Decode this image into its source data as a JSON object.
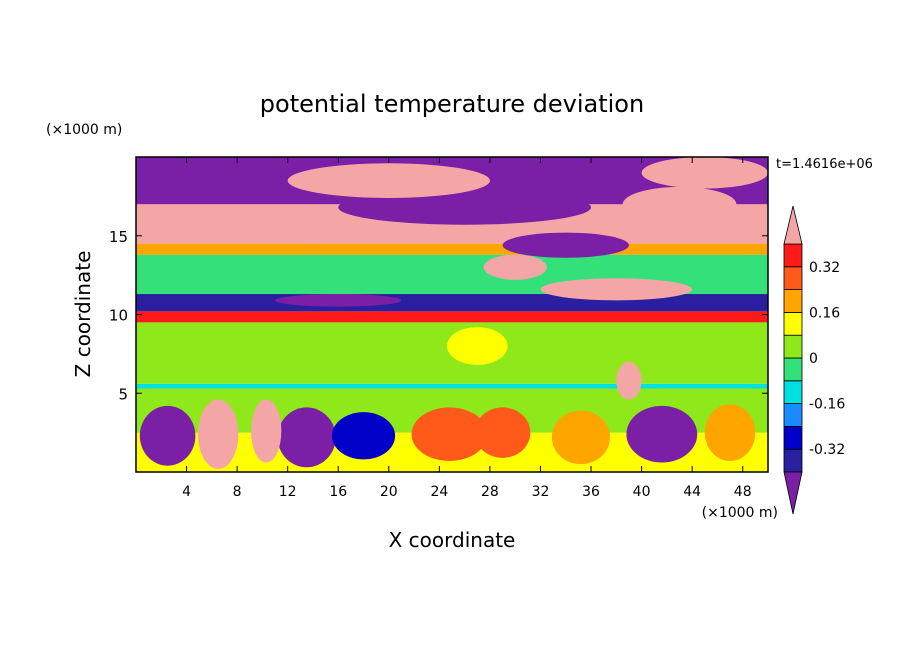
{
  "chart_data": {
    "type": "heatmap",
    "title": "potential temperature deviation",
    "xlabel": "X coordinate",
    "ylabel": "Z coordinate",
    "x_unit": "(×1000 m)",
    "y_unit": "(×1000 m)",
    "time_label": "t=1.4616e+06",
    "xlim": [
      0,
      50
    ],
    "ylim": [
      0,
      20
    ],
    "x_ticks": [
      4,
      8,
      12,
      16,
      20,
      24,
      28,
      32,
      36,
      40,
      44,
      48
    ],
    "y_ticks": [
      5,
      10,
      15
    ],
    "x_tick_labels": [
      "4",
      "8",
      "12",
      "16",
      "20",
      "24",
      "28",
      "32",
      "36",
      "40",
      "44",
      "48"
    ],
    "y_tick_labels": [
      "5",
      "10",
      "15"
    ],
    "colorbar": {
      "levels": [
        -0.4,
        -0.32,
        -0.24,
        -0.16,
        -0.08,
        0,
        0.08,
        0.16,
        0.24,
        0.32,
        0.4
      ],
      "tick_values": [
        -0.32,
        -0.16,
        0,
        0.16,
        0.32
      ],
      "tick_labels": [
        "-0.32",
        "-0.16",
        "0",
        "0.16",
        "0.32"
      ],
      "colors": [
        "#7a1fa6",
        "#2a1f9e",
        "#0000c8",
        "#1a8cff",
        "#00e0e0",
        "#33e07a",
        "#8fe81a",
        "#ffff00",
        "#ffa500",
        "#ff5a1a",
        "#ff1a1a",
        "#f4a6a6"
      ]
    },
    "bands": [
      {
        "z0": 0,
        "z1": 2.5,
        "value": 0.1
      },
      {
        "z0": 2.5,
        "z1": 5.3,
        "value": 0.0
      },
      {
        "z0": 5.3,
        "z1": 5.6,
        "value": -0.12
      },
      {
        "z0": 5.6,
        "z1": 9.5,
        "value": 0.03
      },
      {
        "z0": 9.5,
        "z1": 10.2,
        "value": 0.34
      },
      {
        "z0": 10.2,
        "z1": 11.3,
        "value": -0.38
      },
      {
        "z0": 11.3,
        "z1": 13.8,
        "value": -0.05
      },
      {
        "z0": 13.8,
        "z1": 14.5,
        "value": 0.2
      },
      {
        "z0": 14.5,
        "z1": 17,
        "value": 0.45
      },
      {
        "z0": 17,
        "z1": 20,
        "value": -0.42
      }
    ],
    "blobs": [
      {
        "x": 2.5,
        "z": 2.3,
        "rx": 2.2,
        "rz": 1.9,
        "value": -0.42
      },
      {
        "x": 6.5,
        "z": 2.4,
        "rx": 1.6,
        "rz": 2.2,
        "value": 0.45
      },
      {
        "x": 13.5,
        "z": 2.2,
        "rx": 2.3,
        "rz": 1.9,
        "value": -0.42
      },
      {
        "x": 10.3,
        "z": 2.6,
        "rx": 1.2,
        "rz": 2.0,
        "value": 0.45
      },
      {
        "x": 18.0,
        "z": 2.3,
        "rx": 2.5,
        "rz": 1.5,
        "value": -0.3
      },
      {
        "x": 24.8,
        "z": 2.4,
        "rx": 3.0,
        "rz": 1.7,
        "value": 0.24
      },
      {
        "x": 29.0,
        "z": 2.5,
        "rx": 2.2,
        "rz": 1.6,
        "value": 0.3
      },
      {
        "x": 35.2,
        "z": 2.2,
        "rx": 2.3,
        "rz": 1.7,
        "value": 0.2
      },
      {
        "x": 41.6,
        "z": 2.4,
        "rx": 2.8,
        "rz": 1.8,
        "value": -0.42
      },
      {
        "x": 47.0,
        "z": 2.5,
        "rx": 2.0,
        "rz": 1.8,
        "value": 0.16
      },
      {
        "x": 39.0,
        "z": 5.8,
        "rx": 1.0,
        "rz": 1.2,
        "value": 0.45
      },
      {
        "x": 27.0,
        "z": 8.0,
        "rx": 2.4,
        "rz": 1.2,
        "value": 0.08
      },
      {
        "x": 16.0,
        "z": 10.9,
        "rx": 5.0,
        "rz": 0.4,
        "value": -0.42
      },
      {
        "x": 14.0,
        "z": 15.2,
        "rx": 5.0,
        "rz": 0.7,
        "value": 0.45
      },
      {
        "x": 26.0,
        "z": 16.8,
        "rx": 10.0,
        "rz": 1.1,
        "value": -0.42
      },
      {
        "x": 38.0,
        "z": 11.6,
        "rx": 6.0,
        "rz": 0.7,
        "value": 0.45
      },
      {
        "x": 34.0,
        "z": 14.4,
        "rx": 5.0,
        "rz": 0.8,
        "value": -0.42
      },
      {
        "x": 43.0,
        "z": 17.0,
        "rx": 4.5,
        "rz": 1.1,
        "value": 0.45
      },
      {
        "x": 20.0,
        "z": 18.5,
        "rx": 8.0,
        "rz": 1.1,
        "value": 0.45
      },
      {
        "x": 45.0,
        "z": 19.0,
        "rx": 5.0,
        "rz": 1.0,
        "value": 0.45
      },
      {
        "x": 30.0,
        "z": 13.0,
        "rx": 2.5,
        "rz": 0.8,
        "value": 0.45
      }
    ]
  }
}
